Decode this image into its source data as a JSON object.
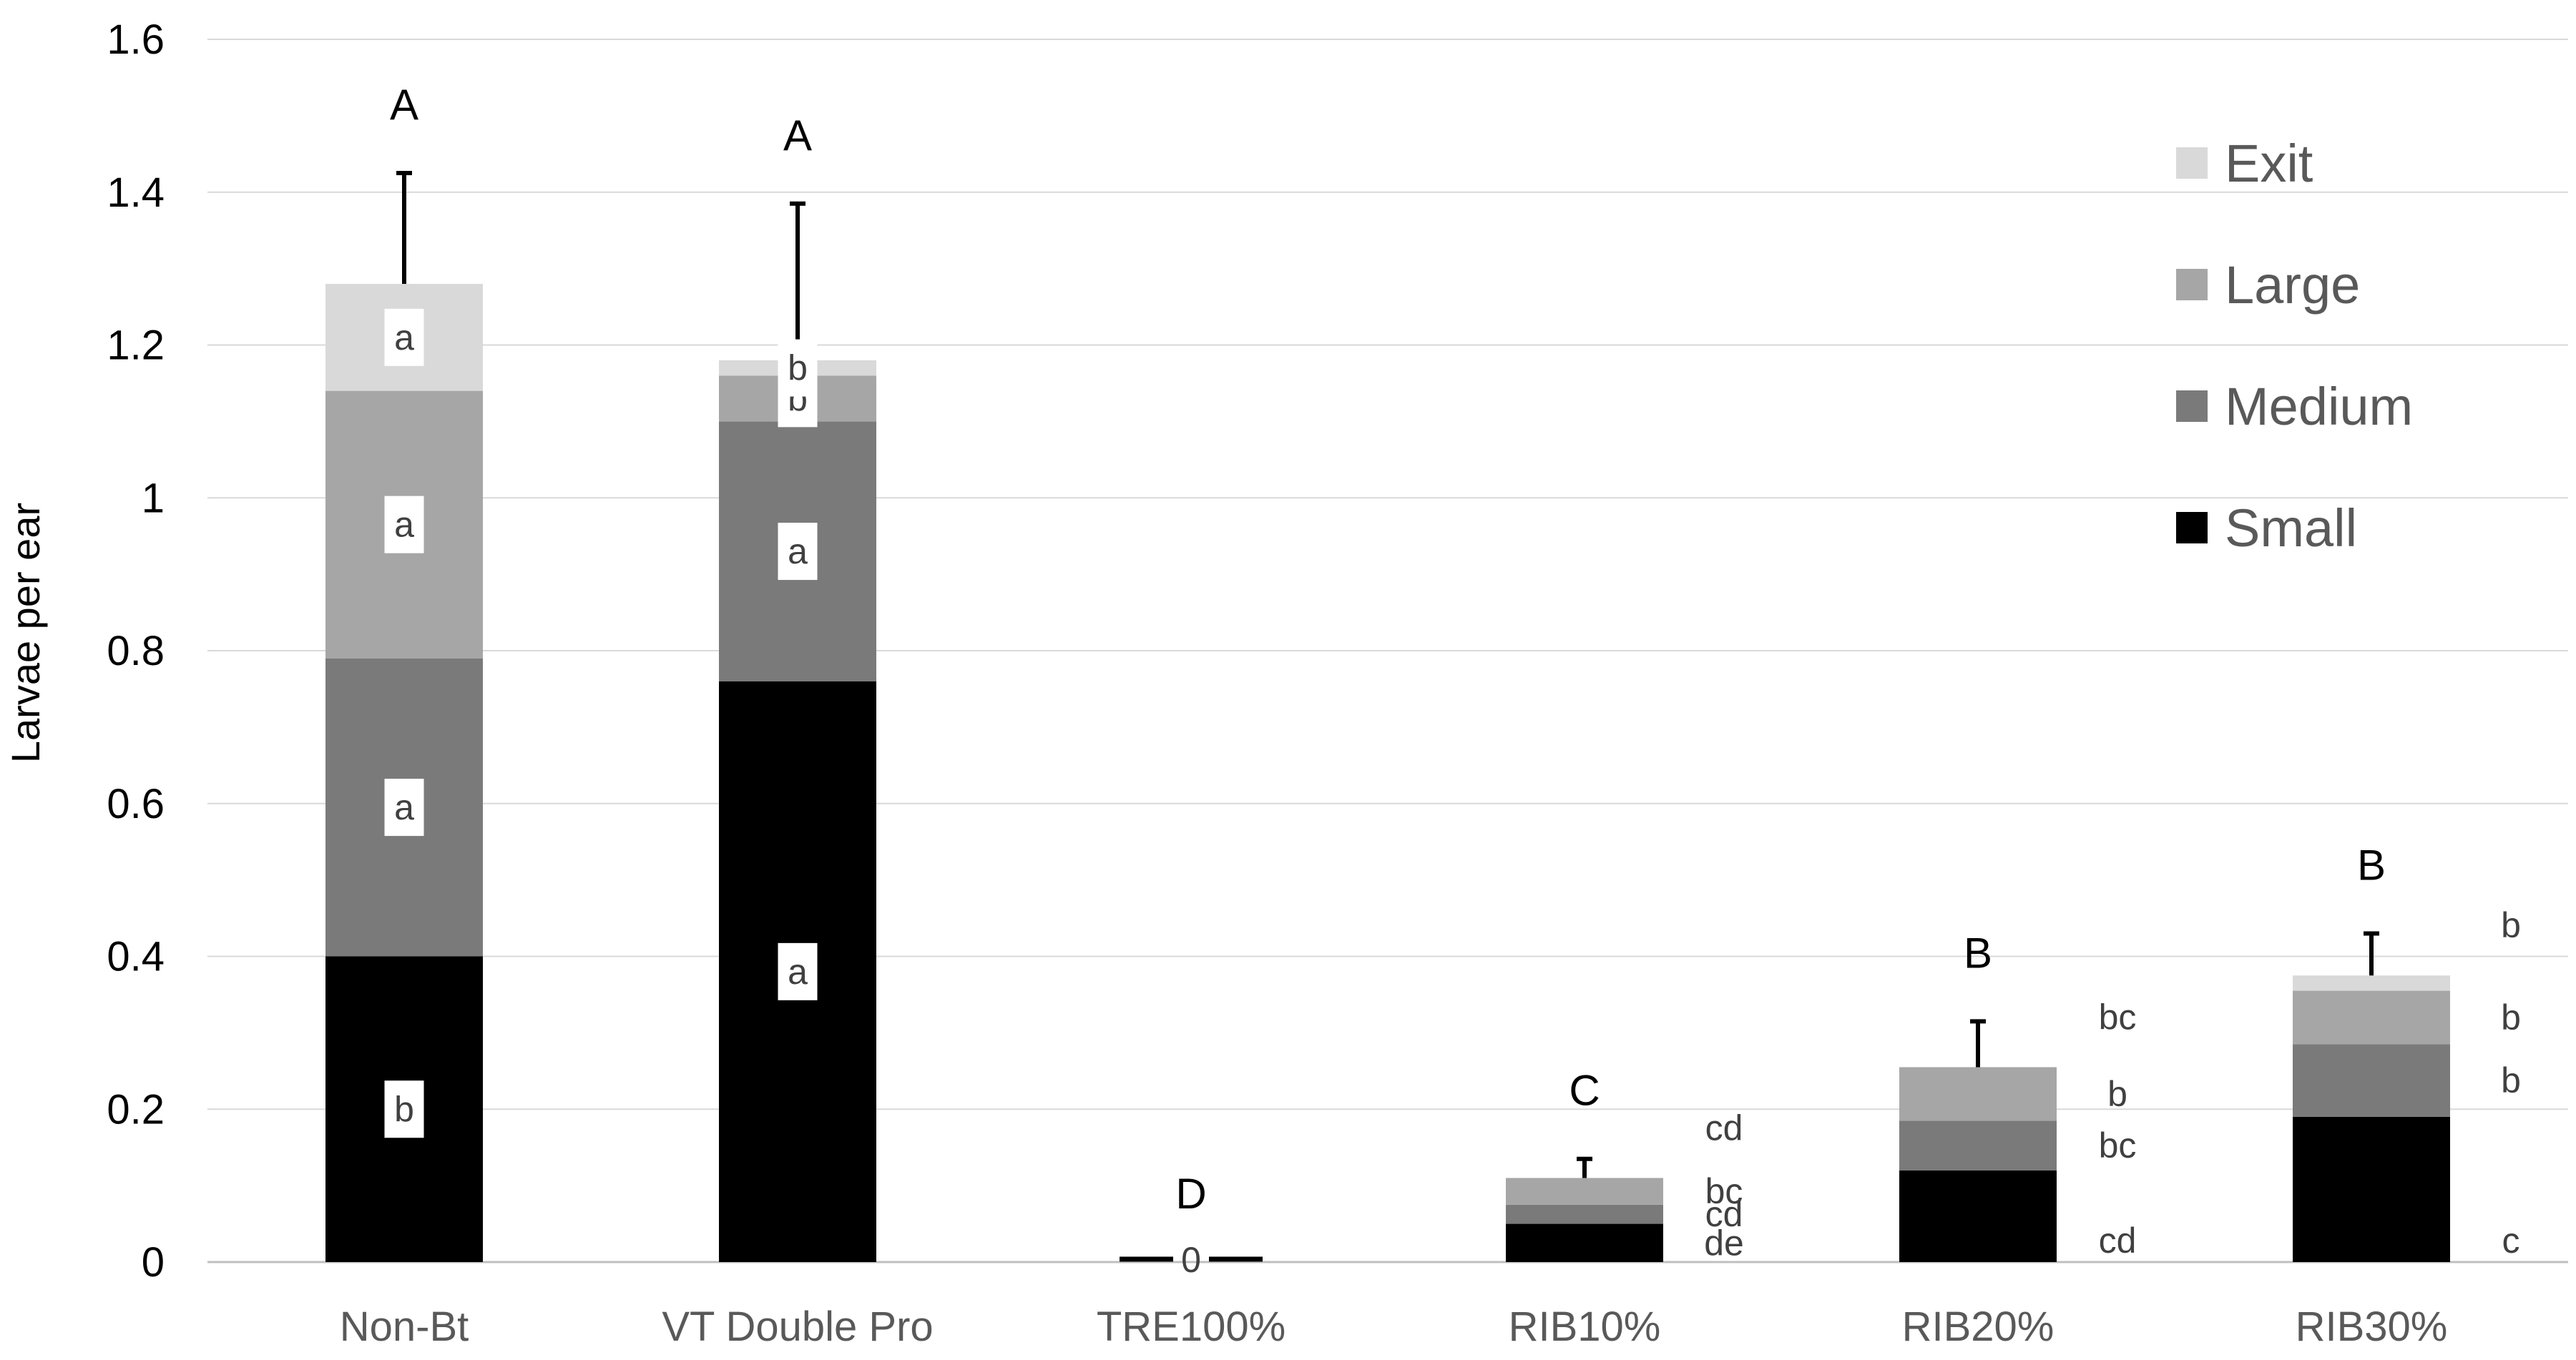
{
  "chart_data": {
    "type": "bar",
    "stacked": true,
    "categories": [
      "Non-Bt",
      "VT Double Pro",
      "TRE100%",
      "RIB10%",
      "RIB20%",
      "RIB30%"
    ],
    "ylabel": "Larvae per ear",
    "xlabel": "",
    "ylim": [
      0,
      1.6
    ],
    "yticks": [
      {
        "value": 0,
        "label": "0"
      },
      {
        "value": 0.2,
        "label": "0.2"
      },
      {
        "value": 0.4,
        "label": "0.4"
      },
      {
        "value": 0.6,
        "label": "0.6"
      },
      {
        "value": 0.8,
        "label": "0.8"
      },
      {
        "value": 1.0,
        "label": "1"
      },
      {
        "value": 1.2,
        "label": "1.2"
      },
      {
        "value": 1.4,
        "label": "1.4"
      },
      {
        "value": 1.6,
        "label": "1.6"
      }
    ],
    "grid": true,
    "legend_position": "top-right",
    "series": [
      {
        "name": "Small",
        "color": "#000000",
        "values": [
          0.4,
          0.76,
          0.0,
          0.05,
          0.12,
          0.19
        ]
      },
      {
        "name": "Medium",
        "color": "#7a7a7a",
        "values": [
          0.39,
          0.34,
          0.0,
          0.025,
          0.065,
          0.095
        ]
      },
      {
        "name": "Large",
        "color": "#a6a6a6",
        "values": [
          0.35,
          0.06,
          0.0,
          0.035,
          0.07,
          0.07
        ]
      },
      {
        "name": "Exit",
        "color": "#d9d9d9",
        "values": [
          0.14,
          0.02,
          0.0,
          0.0,
          0.0,
          0.02
        ]
      }
    ],
    "error_bar_tops": [
      1.425,
      1.385,
      null,
      0.135,
      0.315,
      0.43
    ],
    "zero_marker_label": "0",
    "group_letters": [
      {
        "category": "Non-Bt",
        "text": "A"
      },
      {
        "category": "VT Double Pro",
        "text": "A"
      },
      {
        "category": "TRE100%",
        "text": "D"
      },
      {
        "category": "RIB10%",
        "text": "C"
      },
      {
        "category": "RIB20%",
        "text": "B"
      },
      {
        "category": "RIB30%",
        "text": "B"
      }
    ],
    "segment_letters": [
      {
        "category": "Non-Bt",
        "series": "Small",
        "text": "b"
      },
      {
        "category": "Non-Bt",
        "series": "Medium",
        "text": "a"
      },
      {
        "category": "Non-Bt",
        "series": "Large",
        "text": "a"
      },
      {
        "category": "Non-Bt",
        "series": "Exit",
        "text": "a"
      },
      {
        "category": "VT Double Pro",
        "series": "Small",
        "text": "a"
      },
      {
        "category": "VT Double Pro",
        "series": "Medium",
        "text": "a"
      },
      {
        "category": "VT Double Pro",
        "series": "Large",
        "text": "b"
      },
      {
        "category": "VT Double Pro",
        "series": "Exit",
        "text": "b"
      },
      {
        "category": "RIB10%",
        "series": "Small",
        "text": "de"
      },
      {
        "category": "RIB10%",
        "series": "Medium",
        "text": "cd"
      },
      {
        "category": "RIB10%",
        "series": "Large",
        "text": "bc"
      },
      {
        "category": "RIB10%",
        "series": "Exit",
        "text": "cd"
      },
      {
        "category": "RIB20%",
        "series": "Small",
        "text": "cd"
      },
      {
        "category": "RIB20%",
        "series": "Medium",
        "text": "bc"
      },
      {
        "category": "RIB20%",
        "series": "Large",
        "text": "b"
      },
      {
        "category": "RIB20%",
        "series": "Exit",
        "text": "bc"
      },
      {
        "category": "RIB30%",
        "series": "Small",
        "text": "c"
      },
      {
        "category": "RIB30%",
        "series": "Medium",
        "text": "b"
      },
      {
        "category": "RIB30%",
        "series": "Large",
        "text": "b"
      },
      {
        "category": "RIB30%",
        "series": "Exit",
        "text": "b"
      }
    ]
  }
}
